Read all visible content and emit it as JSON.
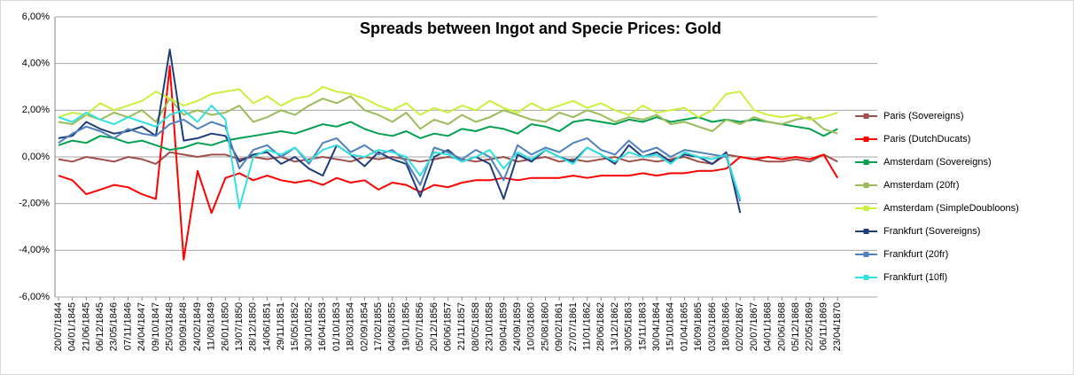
{
  "chart_data": {
    "type": "line",
    "title": "Spreads between Ingot and Specie Prices: Gold",
    "categories": [
      "20/07/1844",
      "04/01/1845",
      "21/06/1845",
      "06/12/1845",
      "23/05/1846",
      "07/11/1846",
      "24/04/1847",
      "09/10/1847",
      "25/03/1848",
      "09/09/1848",
      "24/02/1849",
      "11/08/1849",
      "26/01/1850",
      "13/07/1850",
      "28/12/1850",
      "14/06/1851",
      "29/11/1851",
      "15/05/1852",
      "30/10/1852",
      "16/04/1853",
      "01/10/1853",
      "18/03/1854",
      "02/09/1854",
      "17/02/1855",
      "04/08/1855",
      "19/01/1856",
      "05/07/1856",
      "20/12/1856",
      "06/06/1857",
      "21/11/1857",
      "08/05/1858",
      "23/10/1858",
      "09/04/1859",
      "24/09/1859",
      "10/03/1860",
      "25/08/1860",
      "09/02/1861",
      "27/07/1861",
      "11/01/1862",
      "28/06/1862",
      "13/12/1862",
      "30/05/1863",
      "15/11/1863",
      "30/04/1864",
      "15/10/1864",
      "01/04/1865",
      "16/09/1865",
      "03/03/1866",
      "18/08/1866",
      "02/02/1867",
      "20/07/1867",
      "04/01/1868",
      "20/06/1868",
      "05/12/1868",
      "22/05/1869",
      "06/11/1869",
      "23/04/1870"
    ],
    "series": [
      {
        "name": "Paris (Sovereigns)",
        "color": "#a0504a",
        "values": [
          -0.1,
          -0.2,
          0,
          -0.1,
          -0.2,
          0,
          -0.1,
          -0.3,
          0.2,
          0.1,
          0,
          0.1,
          0.1,
          -0.1,
          0,
          -0.1,
          0,
          -0.2,
          -0.1,
          0,
          -0.1,
          -0.2,
          0,
          -0.1,
          0,
          -0.1,
          -0.2,
          -0.1,
          0,
          -0.1,
          -0.2,
          -0.1,
          0,
          -0.2,
          -0.1,
          0,
          -0.2,
          -0.1,
          -0.2,
          -0.1,
          0,
          -0.2,
          -0.1,
          -0.2,
          -0.1,
          0,
          -0.2,
          -0.3,
          0.1,
          0,
          -0.1,
          -0.2,
          -0.2,
          -0.1,
          -0.2,
          0.1,
          -0.2
        ]
      },
      {
        "name": "Paris (DutchDucats)",
        "color": "#ff0000",
        "values": [
          -0.8,
          -1.0,
          -1.6,
          -1.4,
          -1.2,
          -1.3,
          -1.6,
          -1.8,
          3.9,
          -4.4,
          -0.6,
          -2.4,
          -0.9,
          -0.7,
          -1.0,
          -0.8,
          -1.0,
          -1.1,
          -1.0,
          -1.2,
          -0.9,
          -1.1,
          -1.0,
          -1.4,
          -1.1,
          -1.2,
          -1.5,
          -1.2,
          -1.3,
          -1.1,
          -1.0,
          -1.0,
          -0.9,
          -1.0,
          -0.9,
          -0.9,
          -0.9,
          -0.8,
          -0.9,
          -0.8,
          -0.8,
          -0.8,
          -0.7,
          -0.8,
          -0.7,
          -0.7,
          -0.6,
          -0.6,
          -0.5,
          0.0,
          -0.1,
          0.0,
          -0.1,
          0.0,
          -0.1,
          0.1,
          -0.9
        ]
      },
      {
        "name": "Amsterdam (Sovereigns)",
        "color": "#00a050",
        "values": [
          0.5,
          0.7,
          0.6,
          0.9,
          0.8,
          0.6,
          0.7,
          0.5,
          0.3,
          0.4,
          0.6,
          0.5,
          0.7,
          0.8,
          0.9,
          1.0,
          1.1,
          1.0,
          1.2,
          1.4,
          1.3,
          1.5,
          1.2,
          1.0,
          0.9,
          1.1,
          0.8,
          1.0,
          0.9,
          1.2,
          1.1,
          1.3,
          1.2,
          1.0,
          1.4,
          1.3,
          1.1,
          1.5,
          1.6,
          1.5,
          1.4,
          1.6,
          1.5,
          1.7,
          1.5,
          1.6,
          1.7,
          1.5,
          1.6,
          1.5,
          1.6,
          1.5,
          1.4,
          1.3,
          1.2,
          0.9,
          1.2
        ]
      },
      {
        "name": "Amsterdam (20fr)",
        "color": "#9bbb59",
        "values": [
          1.5,
          1.4,
          1.8,
          1.6,
          1.9,
          1.7,
          2.0,
          1.5,
          2.5,
          1.8,
          2.0,
          1.8,
          1.9,
          2.2,
          1.5,
          1.7,
          2.0,
          1.8,
          2.2,
          2.5,
          2.3,
          2.6,
          2.0,
          1.8,
          1.5,
          1.9,
          1.2,
          1.6,
          1.4,
          1.8,
          1.5,
          1.7,
          2.0,
          1.8,
          1.6,
          1.5,
          1.9,
          1.7,
          2.0,
          1.8,
          1.5,
          1.7,
          1.6,
          1.8,
          1.4,
          1.5,
          1.3,
          1.1,
          1.6,
          1.4,
          1.7,
          1.5,
          1.4,
          1.6,
          1.7,
          1.2,
          1.0
        ]
      },
      {
        "name": "Amsterdam (SimpleDoubloons)",
        "color": "#c8f03c",
        "values": [
          1.7,
          1.9,
          1.8,
          2.3,
          2.0,
          2.2,
          2.4,
          2.8,
          2.5,
          2.2,
          2.4,
          2.7,
          2.8,
          2.9,
          2.3,
          2.6,
          2.2,
          2.5,
          2.6,
          3.0,
          2.8,
          2.7,
          2.5,
          2.2,
          2.0,
          2.3,
          1.8,
          2.1,
          1.9,
          2.2,
          2.0,
          2.4,
          2.1,
          1.9,
          2.3,
          2.0,
          2.2,
          2.4,
          2.1,
          2.3,
          2.0,
          1.8,
          2.2,
          1.9,
          2.0,
          2.1,
          1.7,
          2.0,
          2.7,
          2.8,
          2.0,
          1.8,
          1.7,
          1.8,
          1.6,
          1.7,
          1.9
        ]
      },
      {
        "name": "Frankfurt (Sovereigns)",
        "color": "#1f3d7a",
        "values": [
          0.8,
          0.9,
          1.5,
          1.2,
          1.0,
          1.1,
          1.3,
          0.9,
          4.6,
          0.7,
          0.8,
          1.0,
          0.9,
          -0.2,
          0.1,
          0.2,
          -0.3,
          0.0,
          -0.5,
          -0.8,
          0.5,
          0.1,
          -0.4,
          0.2,
          -0.1,
          -0.3,
          -1.7,
          0.0,
          0.3,
          -0.2,
          0.0,
          -0.3,
          -1.8,
          0.1,
          -0.2,
          0.3,
          0.0,
          -0.2,
          0.4,
          0.1,
          -0.3,
          0.5,
          0.0,
          0.2,
          -0.2,
          0.1,
          0.0,
          -0.3,
          0.2,
          -2.4,
          null,
          null,
          null,
          null,
          null,
          null,
          null
        ]
      },
      {
        "name": "Frankfurt (20fr)",
        "color": "#4f81bd",
        "values": [
          0.6,
          1.0,
          1.3,
          1.1,
          0.8,
          1.2,
          1.0,
          0.9,
          1.4,
          1.6,
          1.2,
          1.5,
          1.3,
          -0.5,
          0.3,
          0.5,
          0.0,
          0.4,
          -0.3,
          0.6,
          0.8,
          0.2,
          0.5,
          0.1,
          0.3,
          -0.2,
          -1.2,
          0.4,
          0.2,
          -0.1,
          0.3,
          0.0,
          -1.0,
          0.5,
          0.1,
          0.4,
          0.2,
          0.6,
          0.8,
          0.3,
          0.1,
          0.7,
          0.2,
          0.4,
          0.0,
          0.3,
          0.2,
          0.1,
          0.0,
          -1.9,
          null,
          null,
          null,
          null,
          null,
          null,
          null
        ]
      },
      {
        "name": "Frankfurt (10fl)",
        "color": "#33e0e0",
        "values": [
          1.7,
          1.5,
          1.9,
          1.6,
          1.4,
          1.7,
          1.5,
          1.3,
          1.8,
          2.0,
          1.5,
          2.2,
          1.6,
          -2.2,
          0.0,
          0.3,
          0.1,
          0.4,
          -0.2,
          0.3,
          0.5,
          0.1,
          0.0,
          0.3,
          0.2,
          0.0,
          -0.8,
          0.2,
          0.1,
          -0.2,
          0.0,
          0.3,
          -0.5,
          0.2,
          -0.1,
          0.3,
          0.0,
          -0.3,
          0.4,
          0.1,
          -0.2,
          0.2,
          0.0,
          0.1,
          -0.3,
          0.2,
          0.0,
          -0.1,
          0.1,
          -1.8,
          null,
          null,
          null,
          null,
          null,
          null,
          null
        ]
      }
    ],
    "ylim": [
      -6,
      6
    ],
    "yticks": [
      {
        "value": -6,
        "label": "-6,00%"
      },
      {
        "value": -4,
        "label": "-4,00%"
      },
      {
        "value": -2,
        "label": "-2,00%"
      },
      {
        "value": 0,
        "label": "0,00%"
      },
      {
        "value": 2,
        "label": "2,00%"
      },
      {
        "value": 4,
        "label": "4,00%"
      },
      {
        "value": 6,
        "label": "6,00%"
      }
    ],
    "grid": true,
    "legend": "right"
  }
}
